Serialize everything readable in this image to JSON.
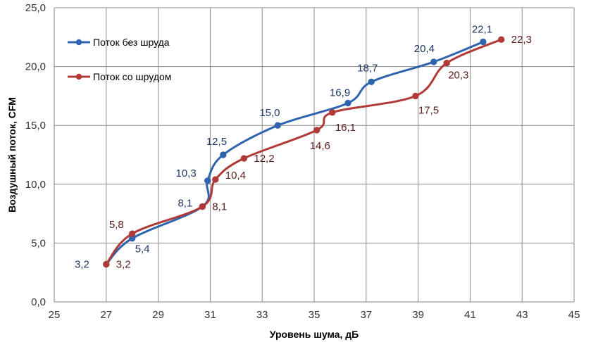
{
  "chart_data": {
    "type": "line",
    "xlabel": "Уровень шума, дБ",
    "ylabel": "Воздушный поток, CFM",
    "xlim": [
      25,
      45
    ],
    "ylim": [
      0,
      25
    ],
    "x_ticks": [
      "25",
      "27",
      "29",
      "31",
      "33",
      "35",
      "37",
      "39",
      "41",
      "43",
      "45"
    ],
    "y_ticks": [
      "0,0",
      "5,0",
      "10,0",
      "15,0",
      "20,0",
      "25,0"
    ],
    "grid": true,
    "legend_position": "top-left",
    "series": [
      {
        "name": "Поток без шруда",
        "color": "#2E64AD",
        "points": [
          {
            "x": 27.0,
            "y": 3.2,
            "label": "3,2"
          },
          {
            "x": 28.0,
            "y": 5.4,
            "label": "5,4"
          },
          {
            "x": 30.7,
            "y": 8.1,
            "label": "8,1"
          },
          {
            "x": 30.9,
            "y": 10.3,
            "label": "10,3"
          },
          {
            "x": 31.5,
            "y": 12.5,
            "label": "12,5"
          },
          {
            "x": 33.6,
            "y": 15.0,
            "label": "15,0"
          },
          {
            "x": 36.3,
            "y": 16.9,
            "label": "16,9"
          },
          {
            "x": 37.2,
            "y": 18.7,
            "label": "18,7"
          },
          {
            "x": 39.6,
            "y": 20.4,
            "label": "20,4"
          },
          {
            "x": 41.5,
            "y": 22.1,
            "label": "22,1"
          }
        ]
      },
      {
        "name": "Поток со шрудом",
        "color": "#B03A38",
        "points": [
          {
            "x": 27.0,
            "y": 3.2,
            "label": "3,2"
          },
          {
            "x": 28.0,
            "y": 5.8,
            "label": "5,8"
          },
          {
            "x": 30.7,
            "y": 8.1,
            "label": "8,1"
          },
          {
            "x": 31.2,
            "y": 10.4,
            "label": "10,4"
          },
          {
            "x": 32.3,
            "y": 12.2,
            "label": "12,2"
          },
          {
            "x": 35.1,
            "y": 14.6,
            "label": "14,6"
          },
          {
            "x": 35.7,
            "y": 16.1,
            "label": "16,1"
          },
          {
            "x": 38.9,
            "y": 17.5,
            "label": "17,5"
          },
          {
            "x": 40.1,
            "y": 20.3,
            "label": "20,3"
          },
          {
            "x": 42.2,
            "y": 22.3,
            "label": "22,3"
          }
        ]
      }
    ]
  }
}
